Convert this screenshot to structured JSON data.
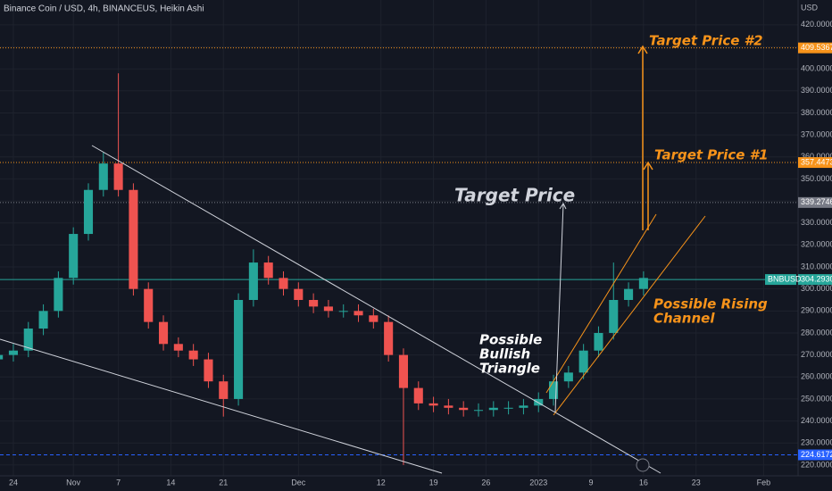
{
  "chart_data": {
    "type": "candlestick",
    "title": "Binance Coin / USD, 4h, BINANCEUS, Heikin Ashi",
    "y_axis_label": "USD",
    "symbol": "BNBUSD",
    "up_color": "#26a69a",
    "down_color": "#ef5350",
    "grid": true,
    "xlim": [
      -1.78,
      104.6
    ],
    "ylim": [
      216.3,
      431.3
    ],
    "xticks": [
      {
        "value": 0,
        "label": "24"
      },
      {
        "value": 8,
        "label": "Nov"
      },
      {
        "value": 14,
        "label": "7"
      },
      {
        "value": 21,
        "label": "14"
      },
      {
        "value": 28,
        "label": "21"
      },
      {
        "value": 38,
        "label": "Dec"
      },
      {
        "value": 49,
        "label": "12"
      },
      {
        "value": 56,
        "label": "19"
      },
      {
        "value": 63,
        "label": "26"
      },
      {
        "value": 70,
        "label": "2023"
      },
      {
        "value": 77,
        "label": "9"
      },
      {
        "value": 84,
        "label": "16"
      },
      {
        "value": 91,
        "label": "23"
      },
      {
        "value": 100,
        "label": "Feb"
      }
    ],
    "yticks": [
      {
        "value": 220,
        "label": "220.0000"
      },
      {
        "value": 230,
        "label": "230.0000"
      },
      {
        "value": 240,
        "label": "240.0000"
      },
      {
        "value": 250,
        "label": "250.0000"
      },
      {
        "value": 260,
        "label": "260.0000"
      },
      {
        "value": 270,
        "label": "270.0000"
      },
      {
        "value": 280,
        "label": "280.0000"
      },
      {
        "value": 290,
        "label": "290.0000"
      },
      {
        "value": 300,
        "label": "300.0000"
      },
      {
        "value": 310,
        "label": "310.0000"
      },
      {
        "value": 320,
        "label": "320.0000"
      },
      {
        "value": 330,
        "label": "330.0000"
      },
      {
        "value": 340,
        "label": "340.0000"
      },
      {
        "value": 350,
        "label": "350.0000"
      },
      {
        "value": 360,
        "label": "360.0000"
      },
      {
        "value": 370,
        "label": "370.0000"
      },
      {
        "value": 380,
        "label": "380.0000"
      },
      {
        "value": 390,
        "label": "390.0000"
      },
      {
        "value": 400,
        "label": "400.0000"
      },
      {
        "value": 410,
        "label": "410.0000"
      },
      {
        "value": 420,
        "label": "420.0000"
      }
    ],
    "x": [
      -2,
      0,
      2,
      4,
      6,
      8,
      10,
      12,
      14,
      16,
      18,
      20,
      22,
      24,
      26,
      28,
      30,
      32,
      34,
      36,
      38,
      40,
      42,
      44,
      46,
      48,
      50,
      52,
      54,
      56,
      58,
      60,
      62,
      64,
      66,
      68,
      70,
      72,
      74,
      76,
      78,
      80,
      82,
      84
    ],
    "open": [
      268,
      270,
      272,
      282,
      290,
      305,
      325,
      345,
      357,
      345,
      300,
      285,
      275,
      272,
      268,
      258,
      250,
      295,
      312,
      305,
      300,
      295,
      292,
      290,
      290,
      288,
      285,
      270,
      255,
      248,
      247,
      246,
      245,
      245,
      246,
      246,
      247,
      250,
      258,
      262,
      272,
      280,
      295,
      300
    ],
    "high": [
      273,
      275,
      285,
      293,
      308,
      328,
      348,
      362,
      398,
      348,
      303,
      288,
      278,
      275,
      271,
      261,
      298,
      318,
      315,
      308,
      303,
      298,
      295,
      293,
      293,
      291,
      288,
      273,
      258,
      251,
      250,
      249,
      248,
      249,
      249,
      250,
      253,
      261,
      265,
      275,
      283,
      312,
      303,
      308
    ],
    "low": [
      265,
      267,
      269,
      279,
      287,
      302,
      322,
      342,
      342,
      297,
      282,
      272,
      269,
      265,
      255,
      242,
      247,
      292,
      302,
      297,
      292,
      289,
      287,
      287,
      285,
      282,
      267,
      220,
      245,
      244,
      243,
      242,
      242,
      242,
      243,
      243,
      244,
      247,
      255,
      259,
      269,
      277,
      292,
      297
    ],
    "close": [
      270,
      272,
      282,
      290,
      305,
      325,
      345,
      357,
      345,
      300,
      285,
      275,
      272,
      268,
      258,
      250,
      295,
      312,
      305,
      300,
      295,
      292,
      290,
      290,
      288,
      285,
      270,
      255,
      248,
      247,
      246,
      245,
      245,
      246,
      246,
      247,
      250,
      258,
      262,
      272,
      280,
      295,
      300,
      305
    ],
    "hlines": [
      {
        "value": 409.5367,
        "color": "#f7931a",
        "style": "dotted"
      },
      {
        "value": 357.4473,
        "color": "#f7931a",
        "style": "dotted"
      },
      {
        "value": 339.2746,
        "color": "#787b86",
        "style": "dotted"
      },
      {
        "value": 304.293,
        "label": "304.2930",
        "color": "#26a69a",
        "style": "solid"
      },
      {
        "value": 224.6172,
        "color": "#2962ff",
        "style": "dashed"
      }
    ],
    "annotations": [
      "Target Price #2",
      "Target Price #1",
      "Target Price",
      "Possible",
      "Bullish",
      "Triangle",
      "Possible Rising",
      "Channel"
    ]
  }
}
